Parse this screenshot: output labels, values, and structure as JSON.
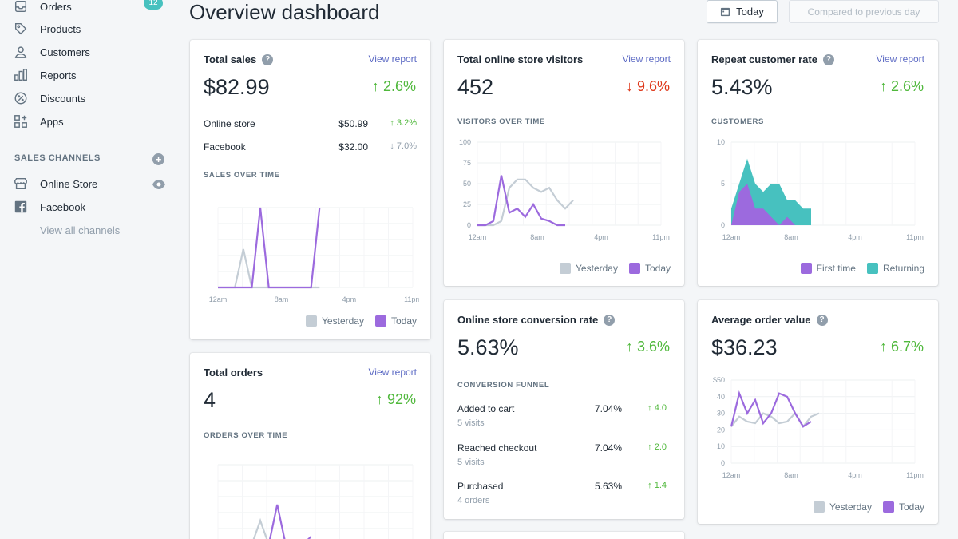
{
  "colors": {
    "today": "#9c6ade",
    "yesterday": "#c4cdd5",
    "returning": "#47c1bf",
    "accent": "#5c6ac4",
    "up": "#50b83c",
    "down": "#de3618"
  },
  "sidebar": {
    "items": [
      {
        "label": "Orders",
        "icon": "orders-icon",
        "badge": "12"
      },
      {
        "label": "Products",
        "icon": "tag-icon"
      },
      {
        "label": "Customers",
        "icon": "person-icon"
      },
      {
        "label": "Reports",
        "icon": "bar-chart-icon"
      },
      {
        "label": "Discounts",
        "icon": "discount-icon"
      },
      {
        "label": "Apps",
        "icon": "apps-icon"
      }
    ],
    "sales_channels_title": "SALES CHANNELS",
    "channels": [
      {
        "label": "Online Store",
        "icon": "store-icon"
      },
      {
        "label": "Facebook",
        "icon": "facebook-icon"
      }
    ],
    "view_all": "View all channels"
  },
  "header": {
    "title": "Overview dashboard",
    "today_button": "Today",
    "compare_button": "Compared to previous day"
  },
  "common": {
    "view_report": "View report",
    "legend_yesterday": "Yesterday",
    "legend_today": "Today",
    "help": "?"
  },
  "total_sales": {
    "title": "Total sales",
    "value": "$82.99",
    "change": "↑ 2.6%",
    "rows": [
      {
        "label": "Online store",
        "value": "$50.99",
        "change": "↑ 3.2%"
      },
      {
        "label": "Facebook",
        "value": "$32.00",
        "change": "↓ 7.0%"
      }
    ],
    "chart_label": "SALES OVER TIME"
  },
  "visitors": {
    "title": "Total online store visitors",
    "value": "452",
    "change": "↓ 9.6%",
    "chart_label": "VISITORS OVER TIME"
  },
  "repeat": {
    "title": "Repeat customer rate",
    "value": "5.43%",
    "change": "↑ 2.6%",
    "chart_label": "CUSTOMERS",
    "legend_first": "First time",
    "legend_returning": "Returning"
  },
  "total_orders": {
    "title": "Total orders",
    "value": "4",
    "change": "↑ 92%",
    "chart_label": "ORDERS OVER TIME"
  },
  "conversion": {
    "title": "Online store conversion rate",
    "value": "5.63%",
    "change": "↑ 3.6%",
    "chart_label": "CONVERSION FUNNEL",
    "rows": [
      {
        "label": "Added to cart",
        "sub": "5 visits",
        "value": "7.04%",
        "change": "↑ 4.0"
      },
      {
        "label": "Reached checkout",
        "sub": "5 visits",
        "value": "7.04%",
        "change": "↑ 2.0"
      },
      {
        "label": "Purchased",
        "sub": "4 orders",
        "value": "5.63%",
        "change": "↑ 1.4"
      }
    ]
  },
  "aov": {
    "title": "Average order value",
    "value": "$36.23",
    "change": "↑ 6.7%"
  },
  "chart_data": [
    {
      "name": "sales",
      "type": "line",
      "x_ticks": [
        "12am",
        "8am",
        "4pm",
        "11pm"
      ],
      "x_range": [
        0,
        23
      ],
      "ylim": [
        0,
        100
      ],
      "series": [
        {
          "name": "Yesterday",
          "x": [
            0,
            1,
            2,
            3,
            4,
            5,
            6,
            7,
            8,
            9,
            10,
            11,
            12
          ],
          "values": [
            0,
            0,
            0,
            48,
            0,
            0,
            0,
            0,
            0,
            0,
            0,
            0,
            0
          ]
        },
        {
          "name": "Today",
          "x": [
            0,
            1,
            2,
            3,
            4,
            5,
            6,
            7,
            8,
            9,
            10,
            11,
            12
          ],
          "values": [
            0,
            0,
            0,
            0,
            0,
            100,
            0,
            0,
            0,
            0,
            0,
            0,
            100
          ]
        }
      ]
    },
    {
      "name": "visitors",
      "type": "line",
      "x_ticks": [
        "12am",
        "8am",
        "4pm",
        "11pm"
      ],
      "y_ticks": [
        "100",
        "75",
        "50",
        "25",
        "0"
      ],
      "x_range": [
        0,
        23
      ],
      "ylim": [
        0,
        100
      ],
      "series": [
        {
          "name": "Yesterday",
          "x": [
            0,
            1,
            2,
            3,
            4,
            5,
            6,
            7,
            8,
            9,
            10,
            11,
            12
          ],
          "values": [
            0,
            0,
            0,
            5,
            45,
            55,
            55,
            45,
            40,
            45,
            30,
            20,
            30
          ]
        },
        {
          "name": "Today",
          "x": [
            0,
            1,
            2,
            3,
            4,
            5,
            6,
            7,
            8,
            9,
            10,
            11
          ],
          "values": [
            0,
            0,
            5,
            60,
            15,
            20,
            10,
            25,
            8,
            5,
            0,
            0
          ]
        }
      ]
    },
    {
      "name": "customers",
      "type": "area",
      "x_ticks": [
        "12am",
        "8am",
        "4pm",
        "11pm"
      ],
      "y_ticks": [
        "10",
        "5",
        "0"
      ],
      "x_range": [
        0,
        23
      ],
      "ylim": [
        0,
        10
      ],
      "series": [
        {
          "name": "Returning",
          "x": [
            0,
            1,
            2,
            3,
            4,
            5,
            6,
            7,
            8,
            9,
            10
          ],
          "values": [
            2,
            5,
            8,
            5,
            4,
            5,
            5,
            3,
            3,
            2,
            2
          ]
        },
        {
          "name": "First time",
          "x": [
            0,
            1,
            2,
            3,
            4,
            5,
            6,
            7,
            8,
            9,
            10
          ],
          "values": [
            0,
            4,
            5,
            2,
            2,
            1,
            0,
            1,
            0,
            0,
            0
          ]
        }
      ]
    },
    {
      "name": "orders",
      "type": "line",
      "x_ticks": [],
      "x_range": [
        0,
        23
      ],
      "ylim": [
        0,
        10
      ],
      "series": [
        {
          "name": "Yesterday",
          "x": [
            4,
            5,
            6
          ],
          "values": [
            0,
            3,
            0
          ]
        },
        {
          "name": "Today",
          "x": [
            5,
            6,
            7,
            8,
            9,
            10,
            11
          ],
          "values": [
            0,
            0,
            5,
            0,
            0,
            0,
            1
          ]
        }
      ]
    },
    {
      "name": "aov",
      "type": "line",
      "x_ticks": [
        "12am",
        "8am",
        "4pm",
        "11pm"
      ],
      "y_ticks": [
        "$50",
        "40",
        "30",
        "20",
        "10",
        "0"
      ],
      "x_range": [
        0,
        23
      ],
      "ylim": [
        0,
        50
      ],
      "series": [
        {
          "name": "Yesterday",
          "x": [
            0,
            1,
            2,
            3,
            4,
            5,
            6,
            7,
            8,
            9,
            10,
            11
          ],
          "values": [
            22,
            28,
            25,
            24,
            30,
            28,
            24,
            25,
            30,
            22,
            28,
            30
          ]
        },
        {
          "name": "Today",
          "x": [
            0,
            1,
            2,
            3,
            4,
            5,
            6,
            7,
            8,
            9,
            10
          ],
          "values": [
            22,
            42,
            30,
            38,
            24,
            30,
            42,
            40,
            30,
            22,
            25
          ]
        }
      ]
    }
  ]
}
